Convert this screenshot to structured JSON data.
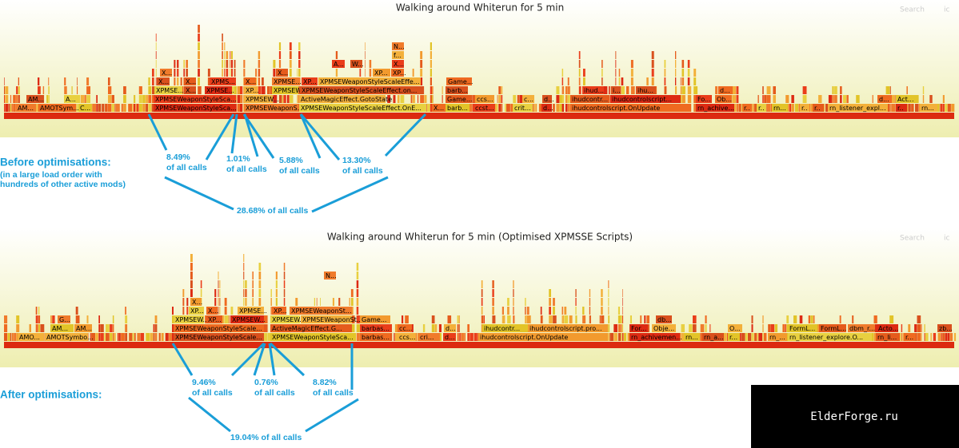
{
  "before": {
    "title": "Walking around Whiterun for 5 min",
    "search": "Search",
    "ic": "ic",
    "frames": [
      "AM...",
      "AMOTSym...",
      "C...",
      "XPMSEWeaponStyleSca...",
      "XPMSEWeaponS...",
      "XPMSEWeaponStyleScaleEffect.OnE...",
      "X...",
      "barb...",
      "ccst...",
      "crit...",
      "d...",
      "ihudcontrolscript.OnUpdate",
      "rn_achive...",
      "r..",
      "r..",
      "rn...",
      "r..",
      "r..",
      "rn_listener_expl...",
      "r..",
      "rn...",
      "AM...",
      "A...",
      "XPMSEWeaponStyleSca...",
      "XPMSEW...",
      "ActiveMagicEffect.GotoState",
      "Game...",
      "ccs...",
      "c...",
      "d...",
      "ihudcontr...",
      "ihudcontrolscript...",
      "Fo...",
      "Ob...",
      "d...",
      "Act...",
      "XPMSE...",
      "X...",
      "XPMSE...",
      "XP...",
      "XPMSEW...",
      "XPMSEWeaponStyleScaleEffect.on...",
      "barb...",
      "ihud...",
      "i...",
      "ihu...",
      "d...",
      "X...",
      "X...",
      "XPMS...",
      "X...",
      "XPMSE...",
      "XP...",
      "XPMSEWeaponStyleScaleEffe...",
      "Game...",
      "X...",
      "X...",
      "XP...",
      "XP...",
      "A...",
      "W...",
      "X...",
      "f...",
      "N..."
    ],
    "percentages": [
      {
        "value": "8.49%",
        "label": "of all calls"
      },
      {
        "value": "1.01%",
        "label": "of all calls"
      },
      {
        "value": "5.88%",
        "label": "of all calls"
      },
      {
        "value": "13.30%",
        "label": "of all calls"
      }
    ],
    "total": "28.68% of all calls",
    "heading": "Before optimisations:",
    "detail": [
      "(in a large load order with",
      "hundreds of other active mods)"
    ]
  },
  "after": {
    "title": "Walking around Whiterun for 5 min (Optimised XPMSSE Scripts)",
    "search": "Search",
    "ic": "ic",
    "frames": [
      "AMO...",
      "AMOTSymbo...",
      "XPMSEWeaponStyleScale...",
      "XPMSEWeaponStyleSca...",
      "barbas...",
      "ccs...",
      "cri...",
      "d...",
      "ihudcontrolscript.OnUpdate",
      "rn_achivemen...",
      "rn...",
      "rn_a...",
      "r...",
      "rn_...",
      "rn_listener_explore.O...",
      "rn_li...",
      "r...",
      "AM...",
      "AM...",
      "XPMSEWeaponStyleScale...",
      "ActiveMagicEffect.G...",
      "barbas...",
      "cc...",
      "d...",
      "ihudcontr...",
      "ihudcontrolscript.pro...",
      "For...",
      "Obje...",
      "O...",
      "FormL...",
      "FormL...",
      "dbm_r...",
      "Acto...",
      "zb...",
      "G...",
      "XPMSEW...",
      "XP...",
      "XPMSEW...",
      "XPMSEW...",
      "XPMSEWeaponSt...",
      "Game...",
      "db...",
      "XP...",
      "X...",
      "XPMSE...",
      "XP...",
      "XPMSEWeaponSt...",
      "X...",
      "N..."
    ],
    "percentages": [
      {
        "value": "9.46%",
        "label": "of all calls"
      },
      {
        "value": "0.76%",
        "label": "of all calls"
      },
      {
        "value": "8.82%",
        "label": "of all calls"
      }
    ],
    "total": "19.04% of all calls",
    "heading": "After optimisations:"
  },
  "watermark": "ElderForge.ru"
}
